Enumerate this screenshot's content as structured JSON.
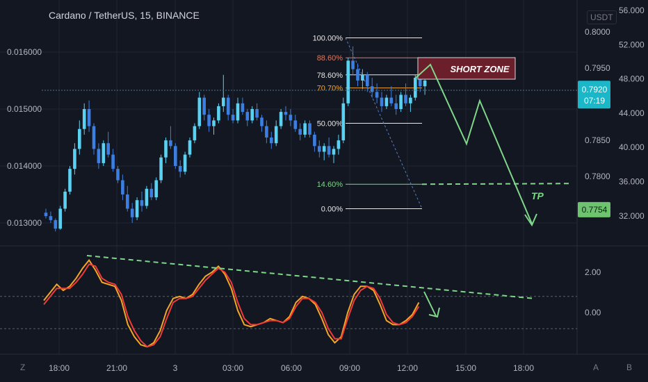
{
  "header": {
    "title": "Cardano / TetherUS, 15, BINANCE",
    "currency": "USDT"
  },
  "footer": {
    "left_btn": "Z",
    "right_btn_a": "A",
    "right_btn_b": "B"
  },
  "colors": {
    "bg": "#131722",
    "up": "#5ad1f0",
    "down": "#3d7fe0",
    "grid": "#1f2433",
    "arrow": "#7fd88a",
    "fib": "#e8e8e8",
    "short_zone": "#6b1f2a",
    "k_line": "#f5a623",
    "d_line": "#ef3b3b"
  },
  "chart_data": [
    {
      "type": "candlestick",
      "title": "Cardano / TetherUS, 15, BINANCE",
      "left_axis_ticks": [
        "0.016000",
        "0.015000",
        "0.014000",
        "0.013000"
      ],
      "left_axis_values": [
        0.016,
        0.015,
        0.014,
        0.013
      ],
      "right_axis_ticks": [
        "0.8000",
        "0.7950",
        "0.7850",
        "0.7800"
      ],
      "right_axis_values": [
        0.8,
        0.795,
        0.785,
        0.78
      ],
      "far_right_ticks": [
        "56.000",
        "52.000",
        "48.000",
        "44.000",
        "40.000",
        "36.000",
        "32.000"
      ],
      "far_right_values": [
        56,
        52,
        48,
        44,
        40,
        36,
        32
      ],
      "x_ticks": [
        "18:00",
        "21:00",
        "3",
        "03:00",
        "06:00",
        "09:00",
        "12:00",
        "15:00",
        "18:00"
      ],
      "price_labels": [
        {
          "text": "0.7920",
          "sub": "07:19",
          "value": 0.792
        },
        {
          "text": "0.7754",
          "value": 0.7754
        }
      ],
      "candles": [
        [
          0.01318,
          0.01325,
          0.01308,
          0.01312
        ],
        [
          0.01312,
          0.0132,
          0.013,
          0.01305
        ],
        [
          0.01305,
          0.01308,
          0.01285,
          0.0129
        ],
        [
          0.0129,
          0.0133,
          0.01288,
          0.01325
        ],
        [
          0.01325,
          0.0136,
          0.0132,
          0.01355
        ],
        [
          0.01355,
          0.014,
          0.0135,
          0.01395
        ],
        [
          0.01395,
          0.0144,
          0.01385,
          0.0143
        ],
        [
          0.0143,
          0.0148,
          0.0142,
          0.01465
        ],
        [
          0.01465,
          0.0151,
          0.01455,
          0.015
        ],
        [
          0.015,
          0.01515,
          0.0146,
          0.0147
        ],
        [
          0.0147,
          0.01475,
          0.0142,
          0.0143
        ],
        [
          0.0143,
          0.0144,
          0.01395,
          0.01405
        ],
        [
          0.01405,
          0.01445,
          0.014,
          0.0144
        ],
        [
          0.0144,
          0.0146,
          0.01415,
          0.0142
        ],
        [
          0.0142,
          0.0143,
          0.0139,
          0.01395
        ],
        [
          0.01395,
          0.014,
          0.0137,
          0.01375
        ],
        [
          0.01375,
          0.01385,
          0.0134,
          0.0135
        ],
        [
          0.0135,
          0.01365,
          0.0132,
          0.01325
        ],
        [
          0.01325,
          0.01335,
          0.013,
          0.0131
        ],
        [
          0.0131,
          0.01345,
          0.01305,
          0.0134
        ],
        [
          0.0134,
          0.01355,
          0.0132,
          0.0133
        ],
        [
          0.0133,
          0.01365,
          0.01325,
          0.0136
        ],
        [
          0.0136,
          0.0137,
          0.0134,
          0.01345
        ],
        [
          0.01345,
          0.0138,
          0.0134,
          0.01375
        ],
        [
          0.01375,
          0.0142,
          0.0137,
          0.01415
        ],
        [
          0.01415,
          0.0145,
          0.01405,
          0.01445
        ],
        [
          0.01445,
          0.0147,
          0.0143,
          0.01435
        ],
        [
          0.01435,
          0.0144,
          0.01395,
          0.014
        ],
        [
          0.014,
          0.0141,
          0.0138,
          0.0139
        ],
        [
          0.0139,
          0.01425,
          0.01385,
          0.0142
        ],
        [
          0.0142,
          0.0145,
          0.01415,
          0.01445
        ],
        [
          0.01445,
          0.01475,
          0.0144,
          0.0147
        ],
        [
          0.0147,
          0.0153,
          0.01465,
          0.0152
        ],
        [
          0.0152,
          0.01525,
          0.0148,
          0.0149
        ],
        [
          0.0149,
          0.015,
          0.0146,
          0.0147
        ],
        [
          0.0147,
          0.01485,
          0.01455,
          0.0148
        ],
        [
          0.0148,
          0.0151,
          0.01475,
          0.01505
        ],
        [
          0.01505,
          0.0156,
          0.01495,
          0.0152
        ],
        [
          0.0152,
          0.01525,
          0.0148,
          0.0149
        ],
        [
          0.0149,
          0.015,
          0.01475,
          0.0148
        ],
        [
          0.0148,
          0.0152,
          0.01475,
          0.0151
        ],
        [
          0.0151,
          0.0152,
          0.0149,
          0.01495
        ],
        [
          0.01495,
          0.015,
          0.0147,
          0.0148
        ],
        [
          0.0148,
          0.01505,
          0.01475,
          0.015
        ],
        [
          0.015,
          0.0151,
          0.0148,
          0.01485
        ],
        [
          0.01485,
          0.0149,
          0.0146,
          0.0147
        ],
        [
          0.0147,
          0.0148,
          0.0144,
          0.0145
        ],
        [
          0.0145,
          0.0146,
          0.0143,
          0.0144
        ],
        [
          0.0144,
          0.0148,
          0.01435,
          0.0147
        ],
        [
          0.0147,
          0.015,
          0.01465,
          0.01495
        ],
        [
          0.01495,
          0.01505,
          0.0148,
          0.0149
        ],
        [
          0.0149,
          0.015,
          0.0147,
          0.0148
        ],
        [
          0.0148,
          0.0149,
          0.0146,
          0.01465
        ],
        [
          0.01465,
          0.01475,
          0.01445,
          0.01455
        ],
        [
          0.01455,
          0.0148,
          0.0145,
          0.01475
        ],
        [
          0.01475,
          0.0148,
          0.0145,
          0.01455
        ],
        [
          0.01455,
          0.0146,
          0.01425,
          0.01435
        ],
        [
          0.01435,
          0.01445,
          0.01415,
          0.01425
        ],
        [
          0.01425,
          0.0144,
          0.0141,
          0.01435
        ],
        [
          0.01435,
          0.0145,
          0.01415,
          0.0142
        ],
        [
          0.0142,
          0.01435,
          0.01405,
          0.0143
        ],
        [
          0.0143,
          0.01455,
          0.0142,
          0.01445
        ],
        [
          0.01445,
          0.0152,
          0.0144,
          0.0151
        ],
        [
          0.0151,
          0.0159,
          0.01505,
          0.01585
        ],
        [
          0.01585,
          0.0161,
          0.0156,
          0.0157
        ],
        [
          0.0157,
          0.0158,
          0.0154,
          0.0155
        ],
        [
          0.0155,
          0.0157,
          0.01535,
          0.0156
        ],
        [
          0.0156,
          0.01565,
          0.0153,
          0.0154
        ],
        [
          0.0154,
          0.01555,
          0.0152,
          0.0153
        ],
        [
          0.0153,
          0.01545,
          0.0151,
          0.0152
        ],
        [
          0.0152,
          0.0153,
          0.01495,
          0.01505
        ],
        [
          0.01505,
          0.01525,
          0.015,
          0.0152
        ],
        [
          0.0152,
          0.0154,
          0.01505,
          0.0151
        ],
        [
          0.0151,
          0.01525,
          0.0149,
          0.015
        ],
        [
          0.015,
          0.0153,
          0.01495,
          0.01525
        ],
        [
          0.01525,
          0.01545,
          0.01505,
          0.0151
        ],
        [
          0.0151,
          0.01525,
          0.01495,
          0.0152
        ],
        [
          0.0152,
          0.0156,
          0.01515,
          0.01555
        ],
        [
          0.01555,
          0.01575,
          0.0153,
          0.0154
        ],
        [
          0.0154,
          0.01555,
          0.01525,
          0.0155
        ]
      ],
      "fib_levels": [
        {
          "label": "100.00%",
          "value": 0.01625
        },
        {
          "label": "88.60%",
          "value": 0.0159
        },
        {
          "label": "78.60%",
          "value": 0.0156
        },
        {
          "label": "70.70%",
          "value": 0.01537
        },
        {
          "label": "50.00%",
          "value": 0.01475
        },
        {
          "label": "14.60%",
          "value": 0.01368
        },
        {
          "label": "0.00%",
          "value": 0.01325
        }
      ],
      "annotations": [
        "SHORT ZONE",
        "TP"
      ]
    },
    {
      "type": "line",
      "name": "oscillator",
      "y_ticks": [
        "2.00",
        "0.00"
      ],
      "y_values": [
        2,
        0
      ],
      "series": [
        {
          "values": [
            0.6,
            1.0,
            1.4,
            1.1,
            1.3,
            1.7,
            2.2,
            2.6,
            2.1,
            1.5,
            1.4,
            1.3,
            0.6,
            -0.6,
            -1.2,
            -1.6,
            -1.7,
            -1.5,
            -0.9,
            0.1,
            0.7,
            0.8,
            0.7,
            0.9,
            1.4,
            1.8,
            2.0,
            2.3,
            1.9,
            1.2,
            0.1,
            -0.6,
            -0.7,
            -0.6,
            -0.5,
            -0.3,
            -0.4,
            -0.5,
            -0.2,
            0.5,
            0.8,
            0.7,
            0.4,
            -0.3,
            -1.1,
            -1.5,
            -1.2,
            0.0,
            0.9,
            1.3,
            1.3,
            1.1,
            0.4,
            -0.4,
            -0.6,
            -0.6,
            -0.4,
            -0.1,
            0.5
          ]
        },
        {
          "values": [
            0.4,
            0.8,
            1.2,
            1.2,
            1.2,
            1.5,
            1.9,
            2.4,
            2.3,
            1.7,
            1.5,
            1.4,
            0.9,
            -0.2,
            -0.9,
            -1.4,
            -1.7,
            -1.6,
            -1.2,
            -0.3,
            0.5,
            0.7,
            0.7,
            0.8,
            1.2,
            1.6,
            1.9,
            2.2,
            2.0,
            1.5,
            0.5,
            -0.3,
            -0.6,
            -0.6,
            -0.5,
            -0.4,
            -0.4,
            -0.5,
            -0.3,
            0.3,
            0.7,
            0.7,
            0.5,
            0.0,
            -0.8,
            -1.3,
            -1.3,
            -0.3,
            0.6,
            1.1,
            1.3,
            1.2,
            0.7,
            -0.1,
            -0.5,
            -0.6,
            -0.5,
            -0.2,
            0.3
          ]
        }
      ]
    }
  ]
}
